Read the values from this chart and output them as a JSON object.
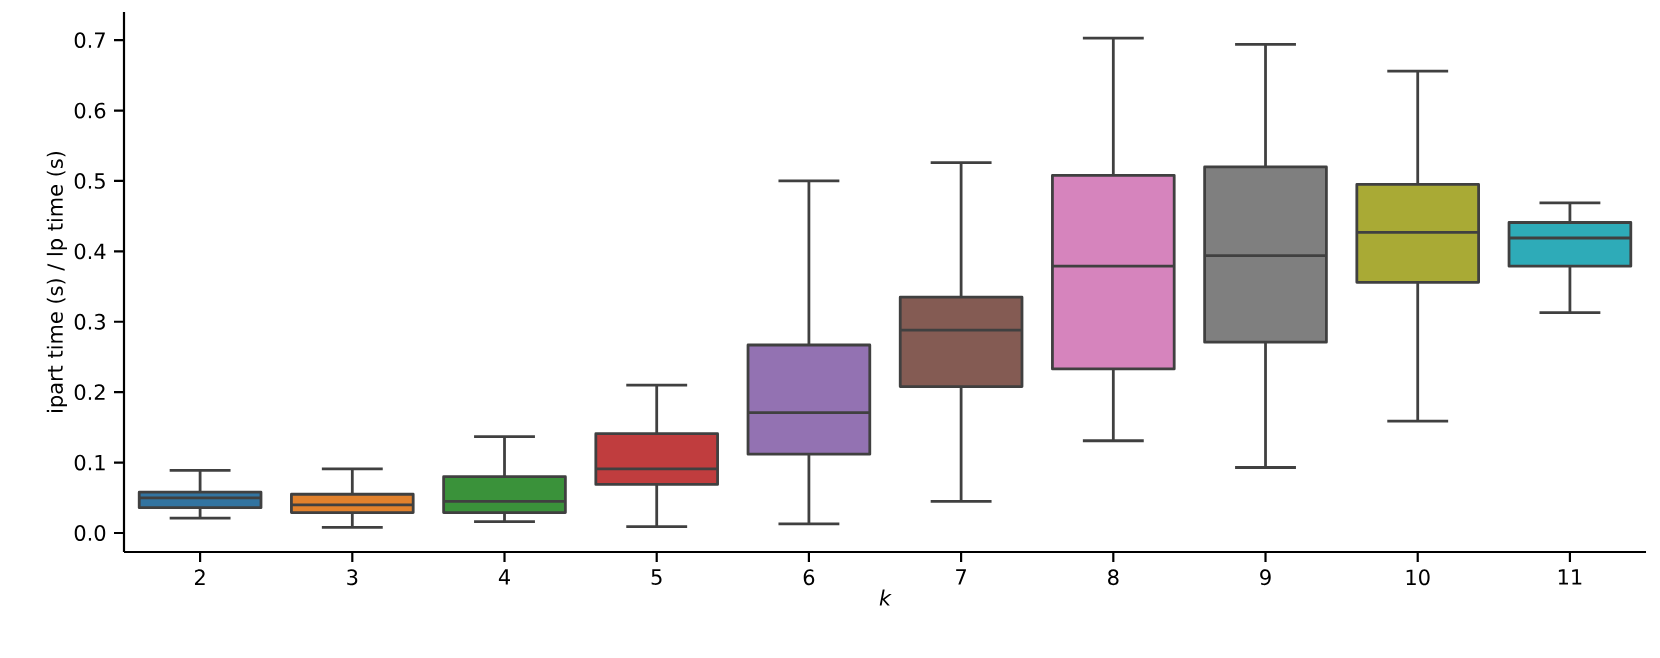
{
  "chart_data": {
    "type": "box",
    "xlabel": "k",
    "ylabel": "ipart time (s) / lp time (s)",
    "categories": [
      "2",
      "3",
      "4",
      "5",
      "6",
      "7",
      "8",
      "9",
      "10",
      "11"
    ],
    "colors": [
      "#3274a1",
      "#e1812c",
      "#3a923a",
      "#c03d3e",
      "#9372b2",
      "#845b53",
      "#d684bd",
      "#7f7f7f",
      "#a9aa35",
      "#2eabb8"
    ],
    "boxes": [
      {
        "low": 0.021,
        "q1": 0.036,
        "median": 0.05,
        "q3": 0.058,
        "high": 0.089
      },
      {
        "low": 0.008,
        "q1": 0.029,
        "median": 0.04,
        "q3": 0.055,
        "high": 0.091
      },
      {
        "low": 0.016,
        "q1": 0.029,
        "median": 0.045,
        "q3": 0.08,
        "high": 0.137
      },
      {
        "low": 0.009,
        "q1": 0.069,
        "median": 0.091,
        "q3": 0.141,
        "high": 0.21
      },
      {
        "low": 0.013,
        "q1": 0.112,
        "median": 0.171,
        "q3": 0.267,
        "high": 0.5
      },
      {
        "low": 0.045,
        "q1": 0.208,
        "median": 0.288,
        "q3": 0.335,
        "high": 0.526
      },
      {
        "low": 0.131,
        "q1": 0.233,
        "median": 0.379,
        "q3": 0.508,
        "high": 0.703
      },
      {
        "low": 0.093,
        "q1": 0.271,
        "median": 0.394,
        "q3": 0.52,
        "high": 0.694
      },
      {
        "low": 0.159,
        "q1": 0.356,
        "median": 0.427,
        "q3": 0.495,
        "high": 0.656
      },
      {
        "low": 0.313,
        "q1": 0.379,
        "median": 0.419,
        "q3": 0.441,
        "high": 0.469
      }
    ],
    "ylim": [
      -0.027,
      0.74
    ],
    "yticks": [
      {
        "value": 0,
        "label": "0.0"
      },
      {
        "value": 0.1,
        "label": "0.1"
      },
      {
        "value": 0.2,
        "label": "0.2"
      },
      {
        "value": 0.3,
        "label": "0.3"
      },
      {
        "value": 0.4,
        "label": "0.4"
      },
      {
        "value": 0.5,
        "label": "0.5"
      },
      {
        "value": 0.6,
        "label": "0.6"
      },
      {
        "value": 0.7,
        "label": "0.7"
      }
    ],
    "grid": false
  }
}
